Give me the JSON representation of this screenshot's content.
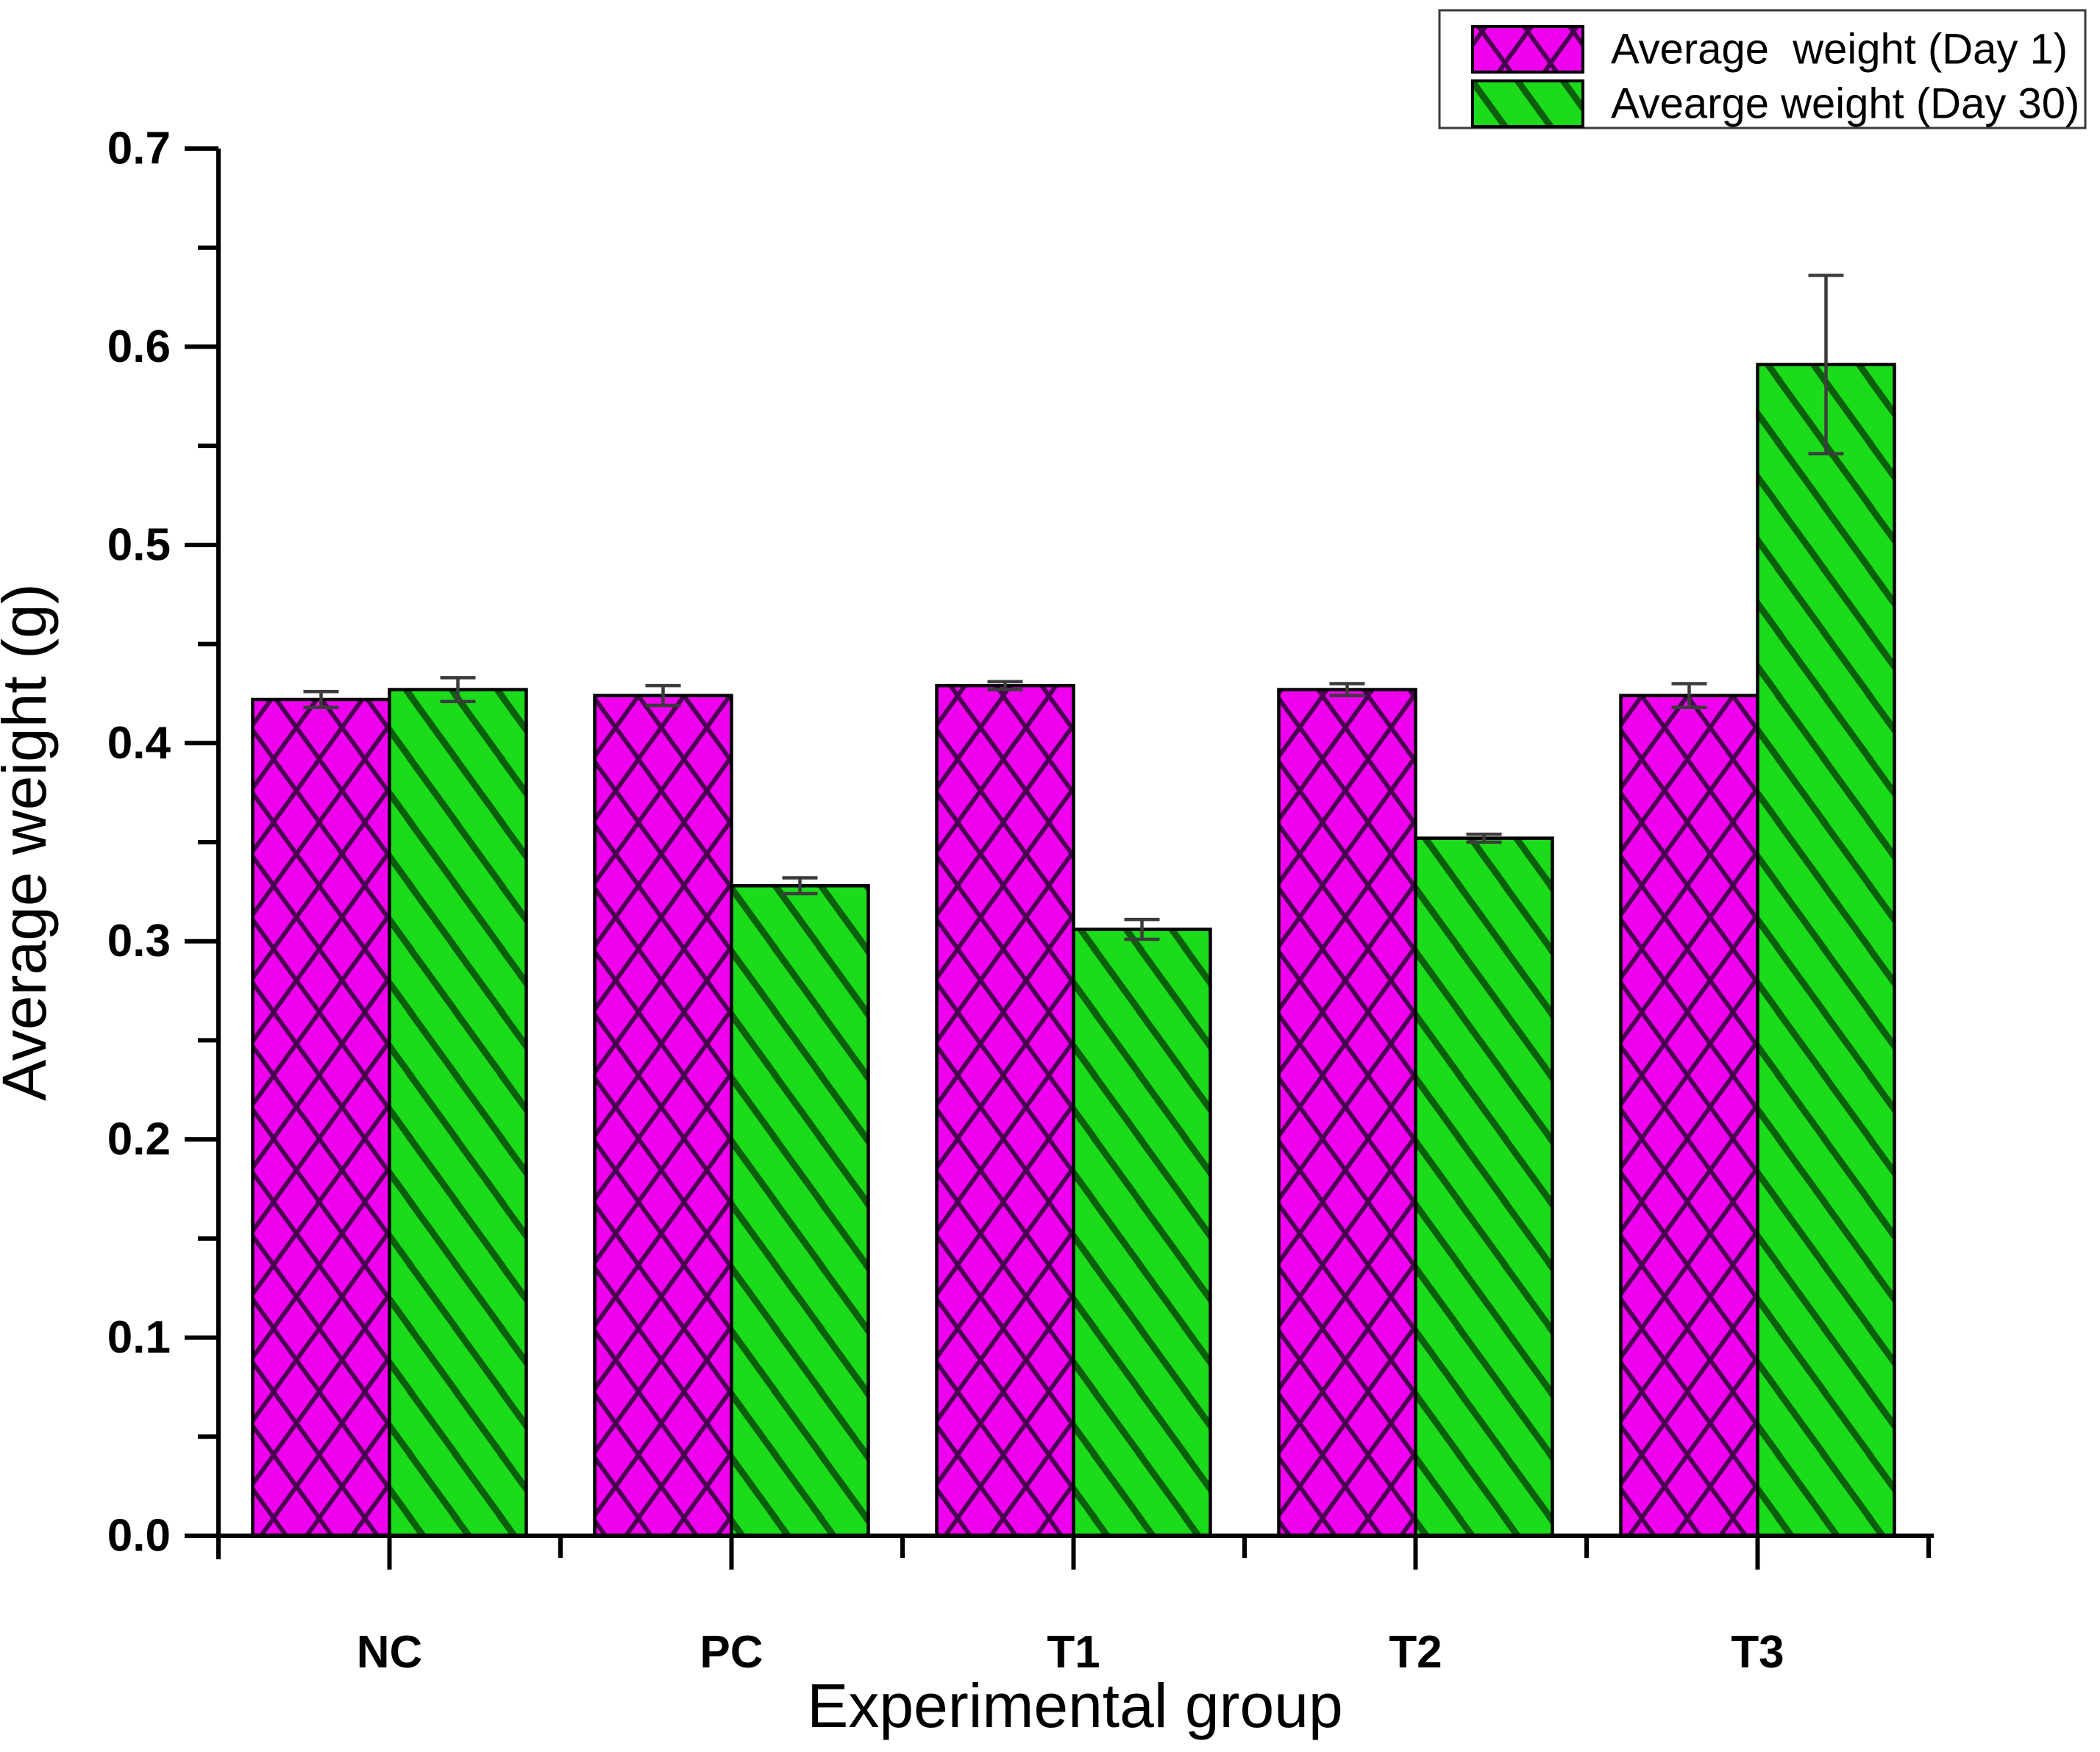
{
  "chart_data": {
    "type": "bar",
    "title": "",
    "categories": [
      "NC",
      "PC",
      "T1",
      "T2",
      "T3"
    ],
    "series": [
      {
        "name": "Average  weight (Day 1)",
        "values": [
          0.422,
          0.424,
          0.429,
          0.427,
          0.424
        ],
        "errors": [
          0.004,
          0.005,
          0.002,
          0.003,
          0.006
        ],
        "fill": "#ee00ee",
        "hatch": "crosshatch",
        "hatch_color": "#4a0050"
      },
      {
        "name": "Avearge weight (Day 30)",
        "values": [
          0.427,
          0.328,
          0.306,
          0.352,
          0.591
        ],
        "errors": [
          0.006,
          0.004,
          0.005,
          0.002,
          0.045
        ],
        "fill": "#1bdb1b",
        "hatch": "diagonal-down",
        "hatch_color": "#0a5f0a"
      }
    ],
    "xlabel": "Experimental group",
    "ylabel": "Average weight (g)",
    "ylim": [
      0.0,
      0.7
    ],
    "ytick_step": 0.1,
    "yminor_step": 0.05,
    "ytick_labels": [
      "0.0",
      "0.1",
      "0.2",
      "0.3",
      "0.4",
      "0.5",
      "0.6",
      "0.7"
    ],
    "grid": false,
    "legend_position": "top-right",
    "axis_color": "#000000",
    "error_bar_color": "#3c3c3c",
    "bar_border_color": "#000000",
    "background_color": "#ffffff"
  }
}
